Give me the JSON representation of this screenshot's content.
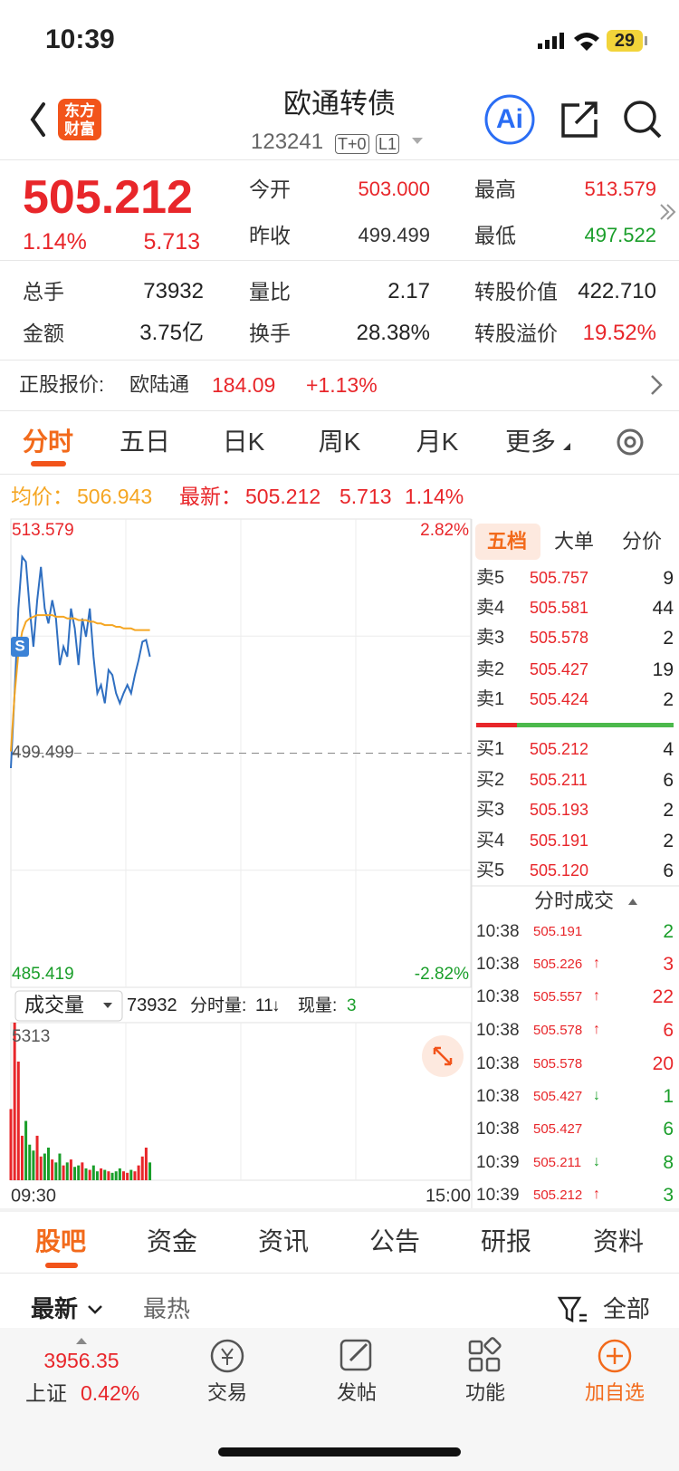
{
  "status": {
    "time": "10:39",
    "battery": "29"
  },
  "header": {
    "logo": [
      "东方",
      "财富"
    ],
    "title": "欧通转债",
    "code": "123241",
    "tags": [
      "T+0",
      "L1"
    ],
    "ai": "Ai"
  },
  "quote": {
    "price": "505.212",
    "pct": "1.14%",
    "change": "5.713",
    "fields": [
      {
        "label": "今开",
        "value": "503.000",
        "color": "#e8262a"
      },
      {
        "label": "最高",
        "value": "513.579",
        "color": "#e8262a"
      },
      {
        "label": "昨收",
        "value": "499.499",
        "color": "#333333"
      },
      {
        "label": "最低",
        "value": "497.522",
        "color": "#1a9e2a"
      }
    ],
    "stats": [
      {
        "label": "总手",
        "value": "73932",
        "color": "#222222"
      },
      {
        "label": "量比",
        "value": "2.17",
        "color": "#222222"
      },
      {
        "label": "转股价值",
        "value": "422.710",
        "color": "#222222"
      },
      {
        "label": "金额",
        "value": "3.75亿",
        "color": "#222222"
      },
      {
        "label": "换手",
        "value": "28.38%",
        "color": "#222222"
      },
      {
        "label": "转股溢价",
        "value": "19.52%",
        "color": "#e8262a"
      }
    ]
  },
  "underlying": {
    "label": "正股报价:",
    "name": "欧陆通",
    "price": "184.09",
    "pct": "+1.13%"
  },
  "tabs": {
    "items": [
      "分时",
      "五日",
      "日K",
      "周K",
      "月K",
      "更多"
    ],
    "active": 0
  },
  "summary": {
    "avg_label": "均价：",
    "avg": "506.943",
    "latest_label": "最新：",
    "latest": "505.212",
    "change": "5.713",
    "pct": "1.14%"
  },
  "chart_data": [
    {
      "type": "line",
      "ylim": [
        485.419,
        513.579
      ],
      "yticks": [
        485.419,
        499.499,
        513.579
      ],
      "y2lim": [
        -2.82,
        2.82
      ],
      "y2ticks": [
        {
          "value": -2.82,
          "label": "-2.82%"
        },
        {
          "value": 2.82,
          "label": "2.82%"
        }
      ],
      "xlabels": [
        "09:30",
        "15:00"
      ],
      "marker": "S",
      "series": [
        {
          "color": "#2f6fc1",
          "values": [
            498.6,
            503.1,
            508.2,
            511.3,
            511.0,
            508.2,
            505.9,
            508.7,
            510.7,
            508.2,
            507.3,
            508.7,
            507.6,
            504.8,
            505.9,
            505.3,
            508.2,
            507.0,
            504.8,
            507.6,
            506.5,
            508.2,
            505.3,
            503.1,
            503.6,
            502.5,
            504.5,
            504.2,
            503.1,
            502.5,
            503.1,
            503.6,
            503.1,
            504.2,
            505.1,
            506.2,
            506.3,
            505.3
          ]
        },
        {
          "color": "#f5a623",
          "values": [
            499.6,
            503.0,
            505.5,
            506.8,
            507.4,
            507.6,
            507.7,
            507.8,
            507.8,
            507.8,
            507.8,
            507.8,
            507.7,
            507.7,
            507.7,
            507.6,
            507.6,
            507.6,
            507.5,
            507.5,
            507.5,
            507.4,
            507.4,
            507.3,
            507.3,
            507.2,
            507.2,
            507.2,
            507.1,
            507.1,
            507.0,
            507.0,
            507.0,
            506.9,
            506.9,
            506.9,
            506.9,
            506.9
          ]
        }
      ]
    },
    {
      "type": "bar",
      "title": "成交量",
      "total": "73932",
      "last_label": "分时量:",
      "last": "11",
      "arrow": "↓",
      "now_label": "现量:",
      "now": "3",
      "ylim": [
        0,
        5313
      ],
      "yticks": [
        5313
      ],
      "up_color": "#e8262a",
      "down_color": "#1a9e2a",
      "values": [
        2400,
        5313,
        4000,
        1500,
        2000,
        1200,
        1000,
        1500,
        800,
        900,
        1100,
        700,
        600,
        900,
        500,
        600,
        700,
        450,
        500,
        600,
        400,
        350,
        500,
        300,
        400,
        350,
        300,
        250,
        300,
        400,
        300,
        250,
        350,
        300,
        500,
        800,
        1100,
        600
      ]
    }
  ],
  "book": {
    "tabs": [
      "五档",
      "大单",
      "分价"
    ],
    "asks": [
      {
        "label": "卖5",
        "price": "505.757",
        "vol": "9"
      },
      {
        "label": "卖4",
        "price": "505.581",
        "vol": "44"
      },
      {
        "label": "卖3",
        "price": "505.578",
        "vol": "2"
      },
      {
        "label": "卖2",
        "price": "505.427",
        "vol": "19"
      },
      {
        "label": "卖1",
        "price": "505.424",
        "vol": "2"
      }
    ],
    "bids": [
      {
        "label": "买1",
        "price": "505.212",
        "vol": "4"
      },
      {
        "label": "买2",
        "price": "505.211",
        "vol": "6"
      },
      {
        "label": "买3",
        "price": "505.193",
        "vol": "2"
      },
      {
        "label": "买4",
        "price": "505.191",
        "vol": "2"
      },
      {
        "label": "买5",
        "price": "505.120",
        "vol": "6"
      }
    ],
    "trades_title": "分时成交",
    "trades": [
      {
        "time": "10:38",
        "price": "505.191",
        "vol": "2",
        "color": "#1a9e2a"
      },
      {
        "time": "10:38",
        "price": "505.226",
        "arrow": "↑",
        "arrow_color": "#e8262a",
        "vol": "3",
        "color": "#e8262a"
      },
      {
        "time": "10:38",
        "price": "505.557",
        "arrow": "↑",
        "arrow_color": "#e8262a",
        "vol": "22",
        "color": "#e8262a"
      },
      {
        "time": "10:38",
        "price": "505.578",
        "arrow": "↑",
        "arrow_color": "#e8262a",
        "vol": "6",
        "color": "#e8262a"
      },
      {
        "time": "10:38",
        "price": "505.578",
        "vol": "20",
        "color": "#e8262a"
      },
      {
        "time": "10:38",
        "price": "505.427",
        "arrow": "↓",
        "arrow_color": "#1a9e2a",
        "vol": "1",
        "color": "#1a9e2a"
      },
      {
        "time": "10:38",
        "price": "505.427",
        "vol": "6",
        "color": "#1a9e2a"
      },
      {
        "time": "10:39",
        "price": "505.211",
        "arrow": "↓",
        "arrow_color": "#1a9e2a",
        "vol": "8",
        "color": "#1a9e2a"
      },
      {
        "time": "10:39",
        "price": "505.212",
        "arrow": "↑",
        "arrow_color": "#e8262a",
        "vol": "3",
        "color": "#1a9e2a"
      }
    ]
  },
  "community": {
    "tabs": [
      "股吧",
      "资金",
      "资讯",
      "公告",
      "研报",
      "资料"
    ],
    "sort": [
      "最新",
      "最热"
    ],
    "filter": "全部"
  },
  "footer": {
    "index": "3956.35",
    "index_name": "上证",
    "index_pct": "0.42%",
    "nav": [
      "交易",
      "发帖",
      "功能",
      "加自选"
    ]
  }
}
